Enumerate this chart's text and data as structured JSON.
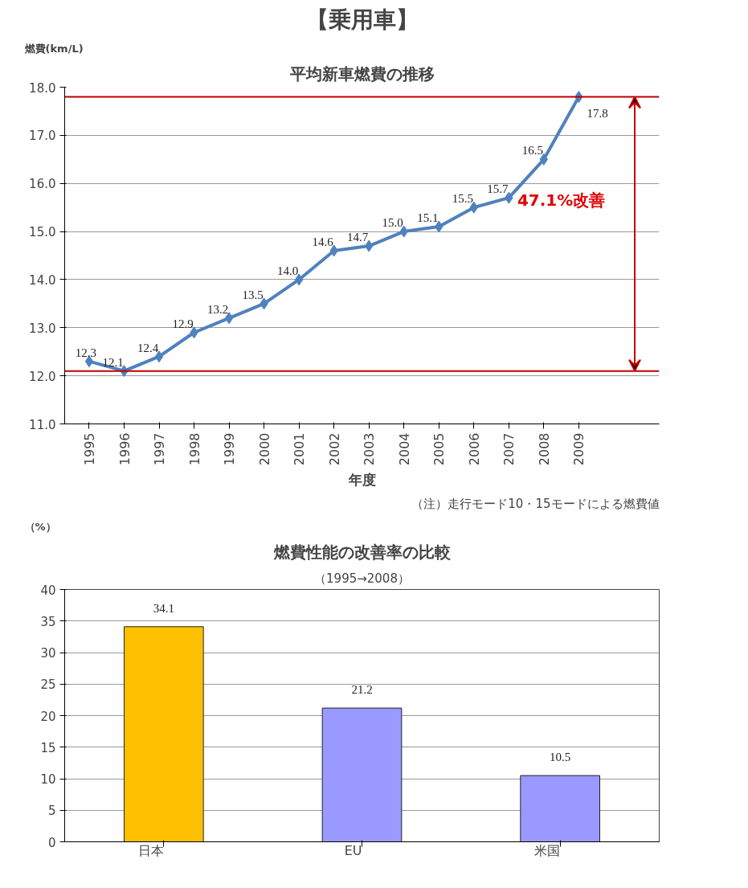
{
  "chart_data": [
    {
      "type": "line",
      "title": "平均新車燃費の推移",
      "ylabel": "燃費(km/L)",
      "xlabel": "年度",
      "categories": [
        "1995",
        "1996",
        "1997",
        "1998",
        "1999",
        "2000",
        "2001",
        "2002",
        "2003",
        "2004",
        "2005",
        "2006",
        "2007",
        "2008",
        "2009"
      ],
      "series": [
        {
          "color": "#4f81bd",
          "values": [
            12.3,
            12.1,
            12.4,
            12.9,
            13.2,
            13.5,
            14.0,
            14.6,
            14.7,
            15.0,
            15.1,
            15.5,
            15.7,
            16.5,
            17.8
          ]
        }
      ],
      "ylim": [
        11,
        18
      ],
      "yticks": [
        {
          "value": 11,
          "label": "11.0"
        },
        {
          "value": 12,
          "label": "12.0"
        },
        {
          "value": 13,
          "label": "13.0"
        },
        {
          "value": 14,
          "label": "14.0"
        },
        {
          "value": 15,
          "label": "15.0"
        },
        {
          "value": 16,
          "label": "16.0"
        },
        {
          "value": 17,
          "label": "17.0"
        },
        {
          "value": 18,
          "label": "18.0"
        }
      ],
      "ref_lines": [
        {
          "axis": "y",
          "value": 12.1,
          "color": "#c00000"
        },
        {
          "axis": "y",
          "value": 17.8,
          "color": "#c00000"
        }
      ],
      "annotations": [
        "【乗用車】",
        "47.1%改善",
        "（注）走行モード10・15モードによる燃費値"
      ],
      "value_labels": [
        "12.3",
        "12.1",
        "12.4",
        "12.9",
        "13.2",
        "13.5",
        "14.0",
        "14.6",
        "14.7",
        "15.0",
        "15.1",
        "15.5",
        "15.7",
        "16.5",
        "17.8"
      ],
      "marker": "diamond",
      "line_style": "solid",
      "grid": "y"
    },
    {
      "type": "bar",
      "title": "燃費性能の改善率の比較",
      "subtitle": "（1995→2008）",
      "ylabel": "（%）",
      "categories": [
        "日本",
        "EU",
        "米国"
      ],
      "values": [
        34.1,
        21.2,
        10.5
      ],
      "colors": [
        "#ffc000",
        "#9999ff",
        "#9999ff"
      ],
      "ylim": [
        0,
        40
      ],
      "yticks": [
        0,
        5,
        10,
        15,
        20,
        25,
        30,
        35,
        40
      ],
      "data_labels": true,
      "grid": "y"
    }
  ]
}
